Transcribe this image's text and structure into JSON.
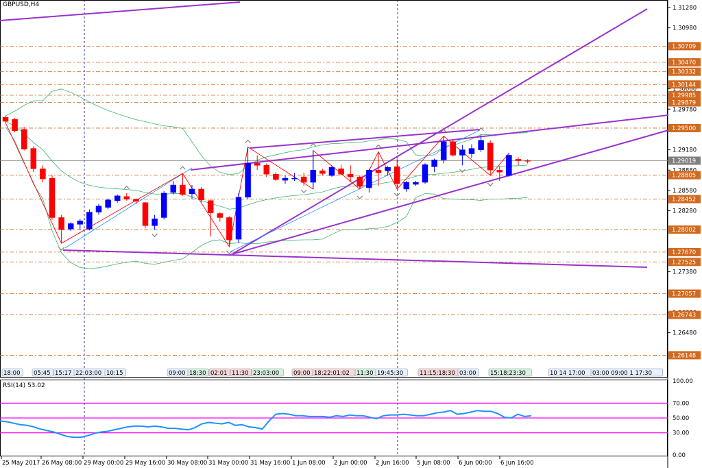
{
  "window": {
    "symbol_title": "GBPUSD,H4"
  },
  "rsi": {
    "title": "RSI(14) 53.02",
    "value": 53.02,
    "levels": [
      70,
      50,
      30
    ],
    "scale_labels": [
      "100.00",
      "70.00",
      "50.00",
      "30.00",
      "0.00"
    ]
  },
  "price_axis": {
    "labels": [
      "1.31280",
      "1.30980",
      "1.30080",
      "1.29780",
      "1.29180",
      "1.28880",
      "1.28580",
      "1.28280",
      "1.27380",
      "1.26780",
      "1.26480"
    ],
    "tagged_levels": [
      {
        "value": "1.30709",
        "color": "#d2691e"
      },
      {
        "value": "1.30470",
        "color": "#d2691e"
      },
      {
        "value": "1.30332",
        "color": "#d2691e"
      },
      {
        "value": "1.30144",
        "color": "#d2691e"
      },
      {
        "value": "1.29985",
        "color": "#d2691e"
      },
      {
        "value": "1.29879",
        "color": "#d2691e"
      },
      {
        "value": "1.29500",
        "color": "#d2691e"
      },
      {
        "value": "1.29019",
        "color": "#808080"
      },
      {
        "value": "1.28805",
        "color": "#d2691e"
      },
      {
        "value": "1.28452",
        "color": "#d2691e"
      },
      {
        "value": "1.28002",
        "color": "#d2691e"
      },
      {
        "value": "1.27670",
        "color": "#d2691e"
      },
      {
        "value": "1.27525",
        "color": "#d2691e"
      },
      {
        "value": "1.27057",
        "color": "#d2691e"
      },
      {
        "value": "1.26743",
        "color": "#d2691e"
      },
      {
        "value": "1.26148",
        "color": "#d2691e"
      }
    ]
  },
  "time_axis": {
    "labels": [
      "25 May 2017",
      "26 May 08:00",
      "29 May 00:00",
      "29 May 16:00",
      "30 May 08:00",
      "31 May 00:00",
      "31 May 16:00",
      "1 Jun 08:00",
      "2 Jun 00:00",
      "2 Jun 16:00",
      "5 Jun 08:00",
      "6 Jun 00:00",
      "6 Jun 16:00"
    ]
  },
  "time_tags": [
    {
      "text": "18:00",
      "color": "#e8f0ff"
    },
    {
      "text": "05:45",
      "color": "#e8f0ff"
    },
    {
      "text": "15:17",
      "color": "#e8f0ff"
    },
    {
      "text": "22:03:00",
      "color": "#e8f0ff"
    },
    {
      "text": "10:15",
      "color": "#e8f0ff"
    },
    {
      "text": "09:00",
      "color": "#e8f0ff"
    },
    {
      "text": "18:30",
      "color": "#d8f0e0"
    },
    {
      "text": "02:01",
      "color": "#f8d8d8"
    },
    {
      "text": "11:30",
      "color": "#f8d8d8"
    },
    {
      "text": "23:03:00",
      "color": "#d8f0e0"
    },
    {
      "text": "09:00",
      "color": "#f8d8d8"
    },
    {
      "text": "18:22:01:02",
      "color": "#f8d8d8"
    },
    {
      "text": "11:30",
      "color": "#d8f0e0"
    },
    {
      "text": "19:45:30",
      "color": "#e8f0ff"
    },
    {
      "text": "11:15:18:30",
      "color": "#f8d8d8"
    },
    {
      "text": "03:00",
      "color": "#e8f0ff"
    },
    {
      "text": "15:18:23:30",
      "color": "#d8f0e0"
    },
    {
      "text": "10 14 17:00",
      "color": "#e8f0ff"
    },
    {
      "text": "03:00 09:00 1 17:30",
      "color": "#e8f0ff"
    }
  ],
  "colors": {
    "bull": "#0000ff",
    "bear": "#ff0000",
    "channel": "#9932cc",
    "zigzag": "#ff0000",
    "trend": "#1e90ff",
    "bands": "#3cb371",
    "rsi_line": "#1e90ff",
    "rsi_levels": "#ff00ff",
    "level_line": "#d2691e",
    "grid": "#000080"
  },
  "chart_data": {
    "type": "candlestick",
    "title": "GBPUSD,H4",
    "ylim": [
      1.2595,
      1.3135
    ],
    "candles": [
      {
        "o": 1.2966,
        "h": 1.2968,
        "l": 1.2958,
        "c": 1.296
      },
      {
        "o": 1.2963,
        "h": 1.2965,
        "l": 1.2944,
        "c": 1.2946
      },
      {
        "o": 1.2948,
        "h": 1.2952,
        "l": 1.2917,
        "c": 1.2919
      },
      {
        "o": 1.292,
        "h": 1.2923,
        "l": 1.2885,
        "c": 1.289
      },
      {
        "o": 1.289,
        "h": 1.2895,
        "l": 1.287,
        "c": 1.2875
      },
      {
        "o": 1.2876,
        "h": 1.288,
        "l": 1.2815,
        "c": 1.2818
      },
      {
        "o": 1.2818,
        "h": 1.2822,
        "l": 1.278,
        "c": 1.28
      },
      {
        "o": 1.2801,
        "h": 1.2811,
        "l": 1.2798,
        "c": 1.2809
      },
      {
        "o": 1.2808,
        "h": 1.2816,
        "l": 1.28,
        "c": 1.2813
      },
      {
        "o": 1.2801,
        "h": 1.283,
        "l": 1.2799,
        "c": 1.2826
      },
      {
        "o": 1.2826,
        "h": 1.2838,
        "l": 1.2822,
        "c": 1.2835
      },
      {
        "o": 1.2833,
        "h": 1.2846,
        "l": 1.283,
        "c": 1.2844
      },
      {
        "o": 1.2843,
        "h": 1.2852,
        "l": 1.284,
        "c": 1.285
      },
      {
        "o": 1.2849,
        "h": 1.2854,
        "l": 1.2843,
        "c": 1.2845
      },
      {
        "o": 1.2845,
        "h": 1.2846,
        "l": 1.2838,
        "c": 1.2842
      },
      {
        "o": 1.284,
        "h": 1.2841,
        "l": 1.2802,
        "c": 1.2806
      },
      {
        "o": 1.2806,
        "h": 1.2822,
        "l": 1.28,
        "c": 1.2816
      },
      {
        "o": 1.2818,
        "h": 1.2857,
        "l": 1.2815,
        "c": 1.2854
      },
      {
        "o": 1.2855,
        "h": 1.2872,
        "l": 1.2852,
        "c": 1.2866
      },
      {
        "o": 1.2866,
        "h": 1.2883,
        "l": 1.285,
        "c": 1.2852
      },
      {
        "o": 1.2853,
        "h": 1.2866,
        "l": 1.2845,
        "c": 1.286
      },
      {
        "o": 1.286,
        "h": 1.2863,
        "l": 1.284,
        "c": 1.2844
      },
      {
        "o": 1.2843,
        "h": 1.2845,
        "l": 1.279,
        "c": 1.2825
      },
      {
        "o": 1.2824,
        "h": 1.2826,
        "l": 1.2812,
        "c": 1.2818
      },
      {
        "o": 1.2818,
        "h": 1.282,
        "l": 1.2775,
        "c": 1.2785
      },
      {
        "o": 1.2786,
        "h": 1.2854,
        "l": 1.278,
        "c": 1.2848
      },
      {
        "o": 1.2848,
        "h": 1.2922,
        "l": 1.2845,
        "c": 1.2898
      },
      {
        "o": 1.2898,
        "h": 1.291,
        "l": 1.2888,
        "c": 1.2895
      },
      {
        "o": 1.2895,
        "h": 1.2898,
        "l": 1.2878,
        "c": 1.2882
      },
      {
        "o": 1.2882,
        "h": 1.2885,
        "l": 1.2872,
        "c": 1.2874
      },
      {
        "o": 1.2873,
        "h": 1.288,
        "l": 1.2868,
        "c": 1.2876
      },
      {
        "o": 1.2876,
        "h": 1.2884,
        "l": 1.2872,
        "c": 1.2876
      },
      {
        "o": 1.2878,
        "h": 1.2884,
        "l": 1.2865,
        "c": 1.287
      },
      {
        "o": 1.287,
        "h": 1.2917,
        "l": 1.286,
        "c": 1.2888
      },
      {
        "o": 1.2887,
        "h": 1.289,
        "l": 1.288,
        "c": 1.2883
      },
      {
        "o": 1.288,
        "h": 1.2895,
        "l": 1.2878,
        "c": 1.2892
      },
      {
        "o": 1.289,
        "h": 1.2896,
        "l": 1.288,
        "c": 1.2882
      },
      {
        "o": 1.2882,
        "h": 1.2895,
        "l": 1.287,
        "c": 1.2878
      },
      {
        "o": 1.2878,
        "h": 1.288,
        "l": 1.286,
        "c": 1.2864
      },
      {
        "o": 1.2862,
        "h": 1.289,
        "l": 1.2855,
        "c": 1.2888
      },
      {
        "o": 1.2888,
        "h": 1.2915,
        "l": 1.2865,
        "c": 1.2884
      },
      {
        "o": 1.2887,
        "h": 1.2894,
        "l": 1.288,
        "c": 1.2892
      },
      {
        "o": 1.2893,
        "h": 1.2905,
        "l": 1.286,
        "c": 1.2868
      },
      {
        "o": 1.286,
        "h": 1.2872,
        "l": 1.2856,
        "c": 1.287
      },
      {
        "o": 1.2867,
        "h": 1.2872,
        "l": 1.2865,
        "c": 1.287
      },
      {
        "o": 1.287,
        "h": 1.2898,
        "l": 1.2868,
        "c": 1.2896
      },
      {
        "o": 1.2893,
        "h": 1.2905,
        "l": 1.2885,
        "c": 1.2903
      },
      {
        "o": 1.2903,
        "h": 1.2938,
        "l": 1.2898,
        "c": 1.293
      },
      {
        "o": 1.293,
        "h": 1.2932,
        "l": 1.2908,
        "c": 1.291
      },
      {
        "o": 1.291,
        "h": 1.2925,
        "l": 1.2895,
        "c": 1.2918
      },
      {
        "o": 1.2912,
        "h": 1.2926,
        "l": 1.2906,
        "c": 1.292
      },
      {
        "o": 1.2918,
        "h": 1.294,
        "l": 1.2915,
        "c": 1.2932
      },
      {
        "o": 1.2928,
        "h": 1.2932,
        "l": 1.288,
        "c": 1.2888
      },
      {
        "o": 1.2888,
        "h": 1.2894,
        "l": 1.2872,
        "c": 1.2885
      },
      {
        "o": 1.288,
        "h": 1.2913,
        "l": 1.2878,
        "c": 1.291
      },
      {
        "o": 1.2904,
        "h": 1.2907,
        "l": 1.2895,
        "c": 1.2902
      },
      {
        "o": 1.2902,
        "h": 1.2904,
        "l": 1.2898,
        "c": 1.2901
      }
    ],
    "rsi_series": [
      46,
      45,
      43,
      41,
      40,
      38,
      35,
      33,
      31,
      28,
      25,
      24,
      24,
      26,
      29,
      31,
      32,
      34,
      36,
      38,
      39,
      39,
      38,
      39,
      38,
      36,
      36,
      35,
      34,
      37,
      42,
      44,
      43,
      42,
      44,
      40,
      41,
      38,
      37,
      35,
      46,
      55,
      56,
      55,
      53,
      53,
      52,
      52,
      52,
      51,
      53,
      52,
      54,
      53,
      53,
      51,
      49,
      53,
      54,
      54,
      55,
      54,
      53,
      53,
      55,
      57,
      58,
      60,
      55,
      56,
      58,
      60,
      59,
      59,
      56,
      51,
      50,
      55,
      52,
      53
    ]
  }
}
